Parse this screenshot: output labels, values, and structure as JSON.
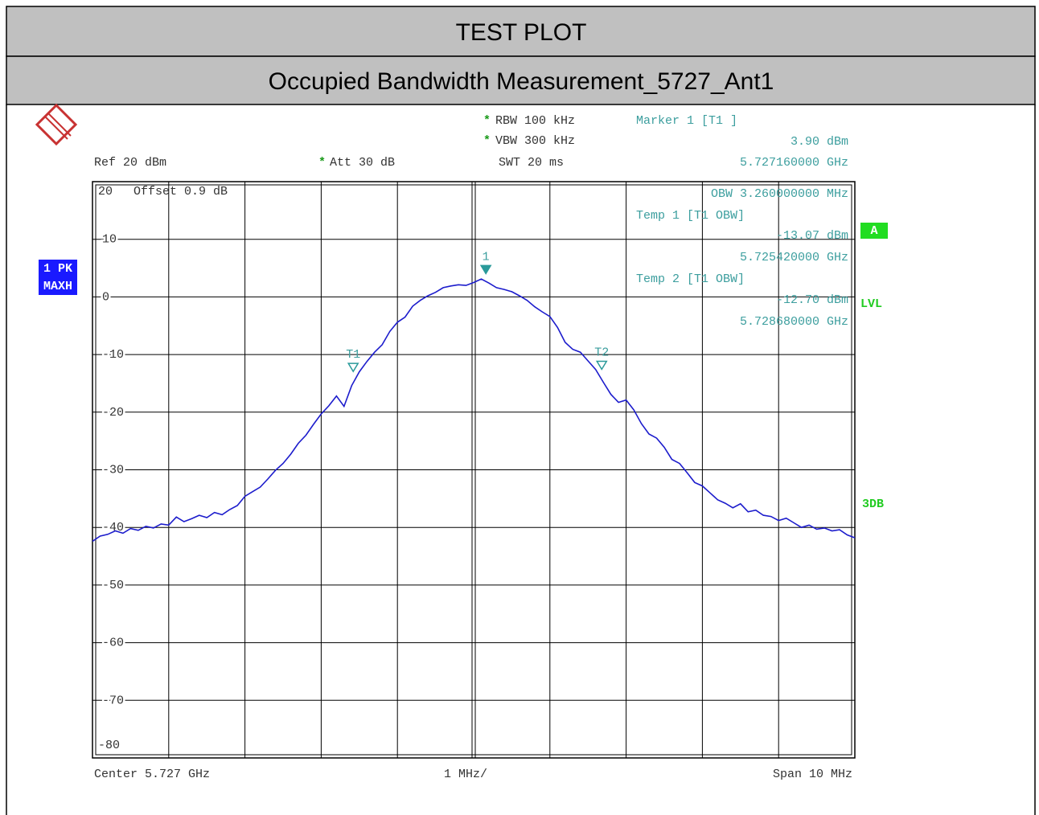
{
  "chart_data": {
    "type": "line",
    "title": "TEST PLOT",
    "subtitle": "Occupied Bandwidth Measurement_5727_Ant1",
    "xlim": [
      5.722,
      5.732
    ],
    "ylim": [
      -80,
      20
    ],
    "yticks": [
      20,
      10,
      0,
      -10,
      -20,
      -30,
      -40,
      -50,
      -60,
      -70,
      -80
    ],
    "xgrid": [
      5.722,
      5.723,
      5.724,
      5.725,
      5.726,
      5.727,
      5.728,
      5.729,
      5.73,
      5.731,
      5.732
    ],
    "grid": true,
    "x": [
      5.722,
      5.7221,
      5.7222,
      5.7223,
      5.7224,
      5.7225,
      5.7226,
      5.7227,
      5.7228,
      5.7229,
      5.723,
      5.7231,
      5.7232,
      5.7233,
      5.7234,
      5.7235,
      5.7236,
      5.7237,
      5.7238,
      5.7239,
      5.724,
      5.7241,
      5.7242,
      5.7243,
      5.7244,
      5.7245,
      5.7246,
      5.7247,
      5.7248,
      5.7249,
      5.725,
      5.7251,
      5.7252,
      5.7253,
      5.7254,
      5.7255,
      5.7256,
      5.7257,
      5.7258,
      5.7259,
      5.726,
      5.7261,
      5.7262,
      5.7263,
      5.7264,
      5.7265,
      5.7266,
      5.7267,
      5.7268,
      5.7269,
      5.727,
      5.7271,
      5.7272,
      5.7273,
      5.7274,
      5.7275,
      5.7276,
      5.7277,
      5.7278,
      5.7279,
      5.728,
      5.7281,
      5.7282,
      5.7283,
      5.7284,
      5.7285,
      5.7286,
      5.7287,
      5.7288,
      5.7289,
      5.729,
      5.7291,
      5.7292,
      5.7293,
      5.7294,
      5.7295,
      5.7296,
      5.7297,
      5.7298,
      5.7299,
      5.73,
      5.7301,
      5.7302,
      5.7303,
      5.7304,
      5.7305,
      5.7306,
      5.7307,
      5.7308,
      5.7309,
      5.731,
      5.7311,
      5.7312,
      5.7313,
      5.7314,
      5.7315,
      5.7316,
      5.7317,
      5.7318,
      5.7319,
      5.732
    ],
    "series": [
      {
        "name": "1 PK",
        "mode": "MAXH",
        "color": "#1c1ccc",
        "values": [
          -42.4,
          -41.5,
          -41.2,
          -40.6,
          -41.0,
          -40.2,
          -40.5,
          -39.8,
          -40.1,
          -39.4,
          -39.6,
          -38.2,
          -39.0,
          -38.5,
          -37.9,
          -38.3,
          -37.4,
          -37.8,
          -36.9,
          -36.2,
          -34.6,
          -33.8,
          -33.0,
          -31.6,
          -30.1,
          -28.9,
          -27.3,
          -25.4,
          -24.0,
          -22.1,
          -20.3,
          -18.9,
          -17.2,
          -19.0,
          -15.4,
          -13.0,
          -11.2,
          -9.6,
          -8.3,
          -6.0,
          -4.4,
          -3.5,
          -1.6,
          -0.6,
          0.2,
          0.8,
          1.6,
          1.9,
          2.1,
          2.0,
          2.5,
          3.1,
          2.4,
          1.6,
          1.3,
          0.9,
          0.2,
          -0.6,
          -1.7,
          -2.6,
          -3.4,
          -5.3,
          -7.9,
          -9.1,
          -9.6,
          -11.1,
          -12.6,
          -14.8,
          -16.9,
          -18.3,
          -17.9,
          -19.6,
          -22.0,
          -23.8,
          -24.5,
          -26.1,
          -28.2,
          -28.9,
          -30.5,
          -32.2,
          -32.8,
          -34.0,
          -35.2,
          -35.8,
          -36.6,
          -35.9,
          -37.3,
          -37.0,
          -37.9,
          -38.1,
          -38.8,
          -38.4,
          -39.2,
          -40.0,
          -39.6,
          -40.3,
          -40.1,
          -40.6,
          -40.4,
          -41.3,
          -41.8
        ]
      }
    ],
    "markers": [
      {
        "label": "1",
        "title": "Marker 1 [T1 ]",
        "x": 5.72716,
        "x_label": "5.727160000 GHz",
        "value": 3.9,
        "value_label": "3.90 dBm",
        "filled": true
      },
      {
        "label": "T1",
        "title": "Temp 1 [T1 OBW]",
        "x": 5.72542,
        "x_label": "5.725420000 GHz",
        "value": -13.07,
        "value_label": "-13.07 dBm",
        "filled": false
      },
      {
        "label": "T2",
        "title": "Temp 2 [T1 OBW]",
        "x": 5.72868,
        "x_label": "5.728680000 GHz",
        "value": -12.7,
        "value_label": "-12.70 dBm",
        "filled": false
      }
    ],
    "obw": "OBW 3.260000000 MHz",
    "settings": [
      {
        "text": "RBW 100 kHz",
        "flag": "*"
      },
      {
        "text": "VBW 300 kHz",
        "flag": "*"
      },
      {
        "text": "SWT 20 ms"
      },
      {
        "text": "Ref 20 dBm"
      },
      {
        "text": "Att 30 dB",
        "flag": "*"
      },
      {
        "text": "Offset 0.9 dB"
      },
      {
        "text": "Center 5.727 GHz"
      },
      {
        "text": "1 MHz/"
      },
      {
        "text": "Span 10 MHz"
      }
    ],
    "side_labels": [
      "A",
      "LVL",
      "3DB"
    ]
  }
}
